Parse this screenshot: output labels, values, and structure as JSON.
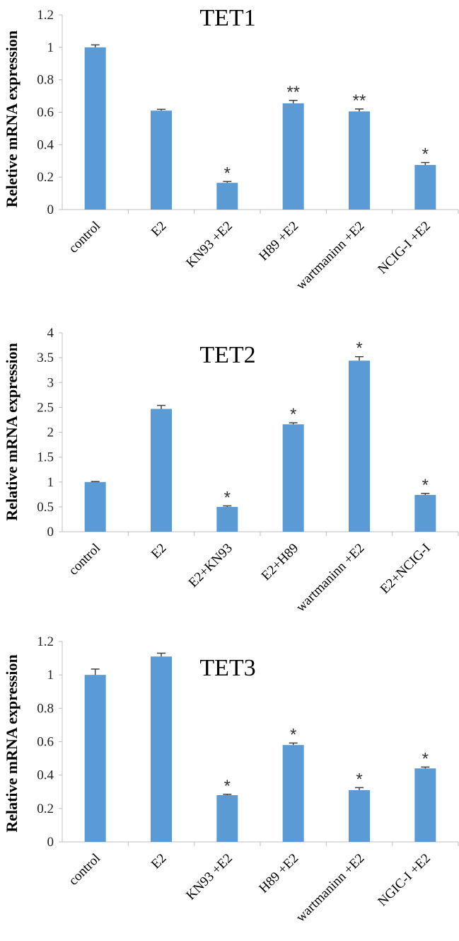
{
  "colors": {
    "bar": "#5b9bd5",
    "axis": "#bfbfbf",
    "error_bar": "#404040"
  },
  "chart_data": [
    {
      "type": "bar",
      "title": "TET1",
      "ylabel": "Reletive mRNA expression",
      "ylim": [
        0,
        1.2
      ],
      "yticks": [
        "0",
        "0.2",
        "0.4",
        "0.6",
        "0.8",
        "1",
        "1.2"
      ],
      "categories": [
        "control",
        "E2",
        "KN93 +E2",
        "H89 +E2",
        "wartmaninn +E2",
        "NCIG-I +E2"
      ],
      "values": [
        1.0,
        0.61,
        0.165,
        0.655,
        0.605,
        0.275
      ],
      "errors": [
        0.015,
        0.008,
        0.008,
        0.018,
        0.015,
        0.015
      ],
      "significance": [
        "",
        "",
        "*",
        "**",
        "**",
        "*"
      ]
    },
    {
      "type": "bar",
      "title": "TET2",
      "ylabel": "Relative mRNA expression",
      "ylim": [
        0,
        4
      ],
      "yticks": [
        "0",
        "0.5",
        "1",
        "1.5",
        "2",
        "2.5",
        "3",
        "3.5",
        "4"
      ],
      "categories": [
        "control",
        "E2",
        "E2+KN93",
        "E2+H89",
        "wartmaninn +E2",
        "E2+NCIG-I"
      ],
      "values": [
        1.0,
        2.47,
        0.5,
        2.16,
        3.44,
        0.74
      ],
      "errors": [
        0.01,
        0.07,
        0.02,
        0.03,
        0.08,
        0.03
      ],
      "significance": [
        "",
        "",
        "*",
        "*",
        "*",
        "*"
      ]
    },
    {
      "type": "bar",
      "title": "TET3",
      "ylabel": "Relative mRNA expression",
      "ylim": [
        0,
        1.2
      ],
      "yticks": [
        "0",
        "0.2",
        "0.4",
        "0.6",
        "0.8",
        "1",
        "1.2"
      ],
      "categories": [
        "control",
        "E2",
        "KN93 +E2",
        "H89 +E2",
        "wartmaninn +E2",
        "NGIC-I +E2"
      ],
      "values": [
        1.0,
        1.11,
        0.28,
        0.58,
        0.31,
        0.44
      ],
      "errors": [
        0.035,
        0.02,
        0.005,
        0.012,
        0.015,
        0.008
      ],
      "significance": [
        "",
        "",
        "*",
        "*",
        "*",
        "*"
      ]
    }
  ]
}
